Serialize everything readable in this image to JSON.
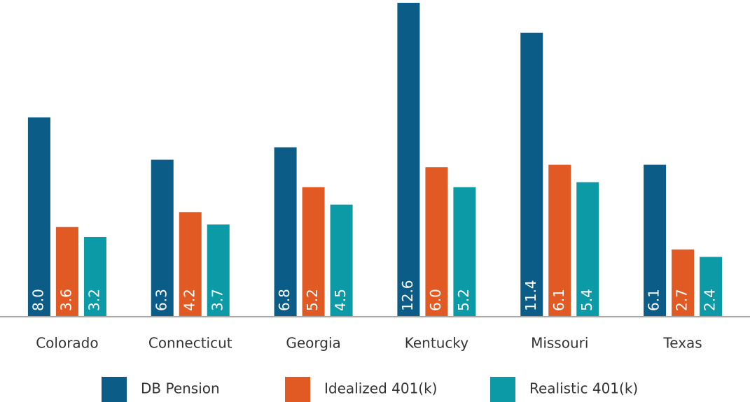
{
  "chart_data": {
    "type": "bar",
    "categories": [
      "Colorado",
      "Connecticut",
      "Georgia",
      "Kentucky",
      "Missouri",
      "Texas"
    ],
    "series": [
      {
        "name": "DB Pension",
        "color": "#0b5c87",
        "values": [
          8.0,
          6.3,
          6.8,
          12.6,
          11.4,
          6.1
        ],
        "value_labels": [
          "8.0",
          "6.3",
          "6.8",
          "12.6",
          "11.4",
          "6.1"
        ]
      },
      {
        "name": "Idealized 401(k)",
        "color": "#e15a24",
        "values": [
          3.6,
          4.2,
          5.2,
          6.0,
          6.1,
          2.7
        ],
        "value_labels": [
          "3.6",
          "4.2",
          "5.2",
          "6.0",
          "6.1",
          "2.7"
        ]
      },
      {
        "name": "Realistic 401(k)",
        "color": "#0b9aa6",
        "values": [
          3.2,
          3.7,
          4.5,
          5.2,
          5.4,
          2.4
        ],
        "value_labels": [
          "3.2",
          "3.7",
          "4.5",
          "5.2",
          "5.4",
          "2.4"
        ]
      }
    ],
    "ylim": [
      0,
      12.6
    ],
    "legend": "bottom"
  }
}
